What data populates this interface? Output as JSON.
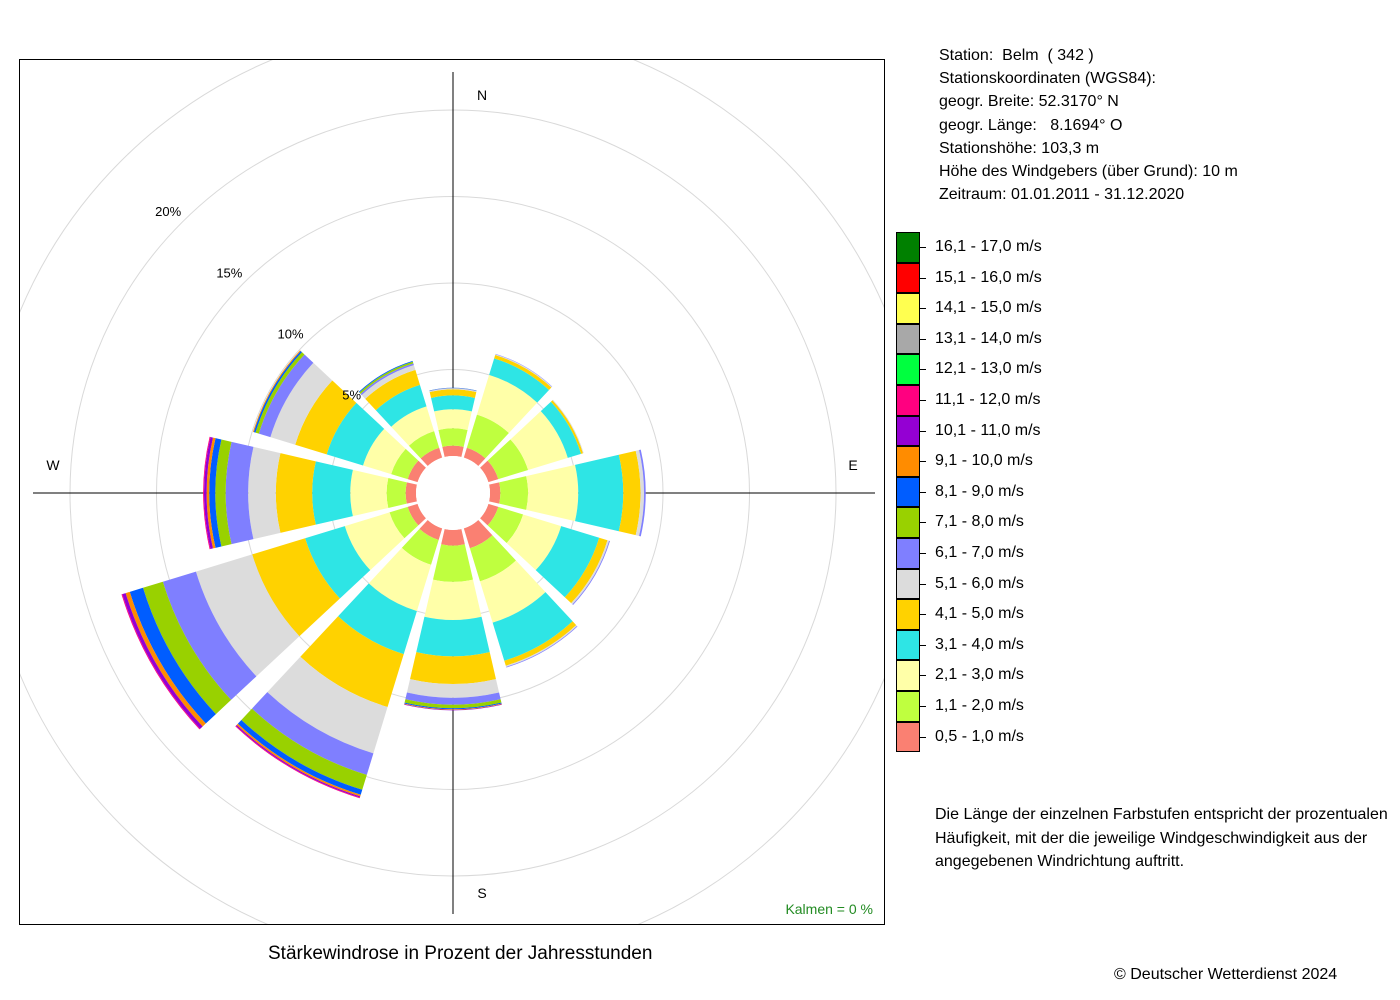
{
  "station": {
    "line1": "Station:  Belm  ( 342 )",
    "line2": "Stationskoordinaten (WGS84):",
    "line3": "geogr. Breite: 52.3170° N",
    "line4": "geogr. Länge:   8.1694° O",
    "line5": "Stationshöhe: 103,3 m",
    "line6": "Höhe des Windgebers (über Grund): 10 m",
    "line7": "Zeitraum: 01.01.2011 - 31.12.2020"
  },
  "explanation": {
    "line1": "Die Länge der einzelnen Farbstufen entspricht der prozentualen",
    "line2": "Häufigkeit, mit der die jeweilige Windgeschwindigkeit aus der",
    "line3": "angegebenen Windrichtung auftritt."
  },
  "copyright": "© Deutscher Wetterdienst  2024",
  "chart_data": {
    "type": "wind_rose",
    "title": "Stärkewindrose in Prozent der Jahresstunden",
    "calm_label": "Kalmen  =  0 %",
    "calm_color": "#228B22",
    "direction_labels": {
      "n": "N",
      "e": "E",
      "s": "S",
      "w": "W"
    },
    "ring_labels": [
      "5%",
      "10%",
      "15%",
      "20%"
    ],
    "ring_values": [
      5,
      10,
      15,
      20,
      25
    ],
    "directions_deg": [
      0,
      30,
      60,
      90,
      120,
      150,
      180,
      210,
      240,
      270,
      300,
      330
    ],
    "speed_classes": [
      {
        "label": "0,5 - 1,0 m/s",
        "color": "#FA8072"
      },
      {
        "label": "1,1 - 2,0 m/s",
        "color": "#BFFF3F"
      },
      {
        "label": "2,1 - 3,0 m/s",
        "color": "#FFFFA8"
      },
      {
        "label": "3,1 - 4,0 m/s",
        "color": "#2EE5E5"
      },
      {
        "label": "4,1 - 5,0 m/s",
        "color": "#FFD200"
      },
      {
        "label": "5,1 - 6,0 m/s",
        "color": "#DCDCDC"
      },
      {
        "label": "6,1 - 7,0 m/s",
        "color": "#7F7FFF"
      },
      {
        "label": "7,1 - 8,0 m/s",
        "color": "#99D100"
      },
      {
        "label": "8,1 - 9,0 m/s",
        "color": "#005DFF"
      },
      {
        "label": "9,1 - 10,0 m/s",
        "color": "#FF8C00"
      },
      {
        "label": "10,1 - 11,0 m/s",
        "color": "#9400D3"
      },
      {
        "label": "11,1 - 12,0 m/s",
        "color": "#FF0080"
      },
      {
        "label": "12,1 - 13,0 m/s",
        "color": "#00FF3F"
      },
      {
        "label": "13,1 - 14,0 m/s",
        "color": "#A8A8A8"
      },
      {
        "label": "14,1 - 15,0 m/s",
        "color": "#FFFF50"
      },
      {
        "label": "15,1 - 16,0 m/s",
        "color": "#FF0000"
      },
      {
        "label": "16,1 - 17,0 m/s",
        "color": "#008000"
      }
    ],
    "series": [
      {
        "direction": "N",
        "values": [
          0.6,
          1.0,
          1.1,
          0.8,
          0.35,
          0.05,
          0.02,
          0.01,
          0.01
        ]
      },
      {
        "direction": "30",
        "values": [
          0.6,
          2.0,
          2.4,
          1.0,
          0.2,
          0.05,
          0.02
        ]
      },
      {
        "direction": "60",
        "values": [
          0.6,
          1.8,
          2.4,
          0.8,
          0.12,
          0.04
        ]
      },
      {
        "direction": "E",
        "values": [
          0.6,
          1.6,
          2.9,
          2.6,
          1.0,
          0.2,
          0.1
        ]
      },
      {
        "direction": "120",
        "values": [
          0.6,
          1.5,
          2.3,
          2.3,
          0.5,
          0.1,
          0.05
        ]
      },
      {
        "direction": "150",
        "values": [
          1.2,
          2.0,
          2.5,
          2.3,
          0.3,
          0.07,
          0.04
        ]
      },
      {
        "direction": "S",
        "values": [
          0.9,
          2.1,
          2.2,
          2.1,
          1.6,
          0.8,
          0.4,
          0.2,
          0.06,
          0.03,
          0.03
        ]
      },
      {
        "direction": "210",
        "values": [
          0.7,
          1.5,
          2.8,
          2.6,
          3.2,
          2.8,
          1.3,
          0.9,
          0.3,
          0.1,
          0.07,
          0.04
        ]
      },
      {
        "direction": "240",
        "values": [
          0.6,
          1.1,
          2.7,
          2.4,
          3.2,
          3.4,
          2.0,
          1.2,
          0.8,
          0.25,
          0.2,
          0.05
        ]
      },
      {
        "direction": "W",
        "values": [
          0.6,
          1.1,
          2.1,
          2.2,
          2.1,
          1.6,
          1.3,
          0.6,
          0.35,
          0.15,
          0.15,
          0.05
        ]
      },
      {
        "direction": "300",
        "values": [
          0.6,
          1.0,
          1.7,
          2.2,
          1.9,
          1.5,
          0.7,
          0.2,
          0.1,
          0.05
        ]
      },
      {
        "direction": "330",
        "values": [
          0.6,
          1.0,
          1.5,
          1.3,
          0.9,
          0.3,
          0.1,
          0.1,
          0.05
        ]
      }
    ]
  }
}
